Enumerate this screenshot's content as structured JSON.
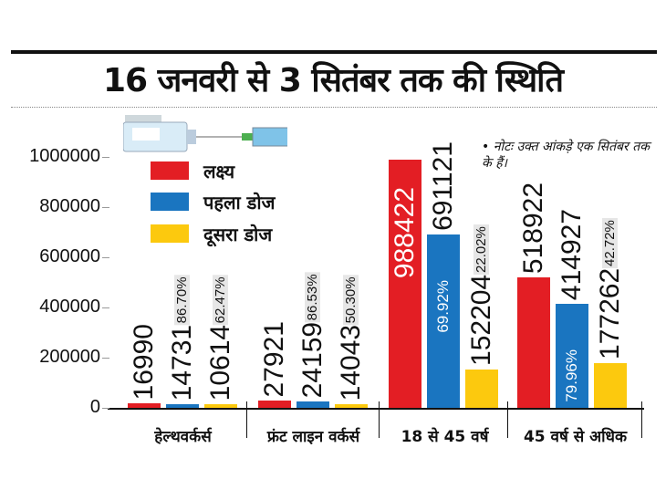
{
  "chart_data": {
    "type": "bar",
    "title": "16 जनवरी से 3 सितंबर तक की स्थिति",
    "note": "• नोटः उक्त आंकड़े एक सितंबर तक के हैं।",
    "categories": [
      "हेल्थवर्कर्स",
      "फ्रंट लाइन वर्कर्स",
      "18 से 45 वर्ष",
      "45 वर्ष से अधिक"
    ],
    "ylim": [
      0,
      1000000
    ],
    "yticks": [
      "0",
      "200000",
      "400000",
      "600000",
      "800000",
      "1000000"
    ],
    "legend_placement": "top-left",
    "series": [
      {
        "name": "लक्ष्य",
        "color": "#e31e24",
        "values": [
          16990,
          27921,
          988422,
          518922
        ],
        "percents": [
          null,
          null,
          null,
          null
        ]
      },
      {
        "name": "पहला डोज",
        "color": "#1a75c0",
        "values": [
          14731,
          24159,
          691121,
          414927
        ],
        "percents": [
          "86.70%",
          "86.53%",
          "69.92%",
          "79.96%"
        ]
      },
      {
        "name": "दूसरा डोज",
        "color": "#fcc90e",
        "values": [
          10614,
          14043,
          152204,
          177262
        ],
        "percents": [
          "62.47%",
          "50.30%",
          "22.02%",
          "42.72%"
        ]
      }
    ]
  }
}
